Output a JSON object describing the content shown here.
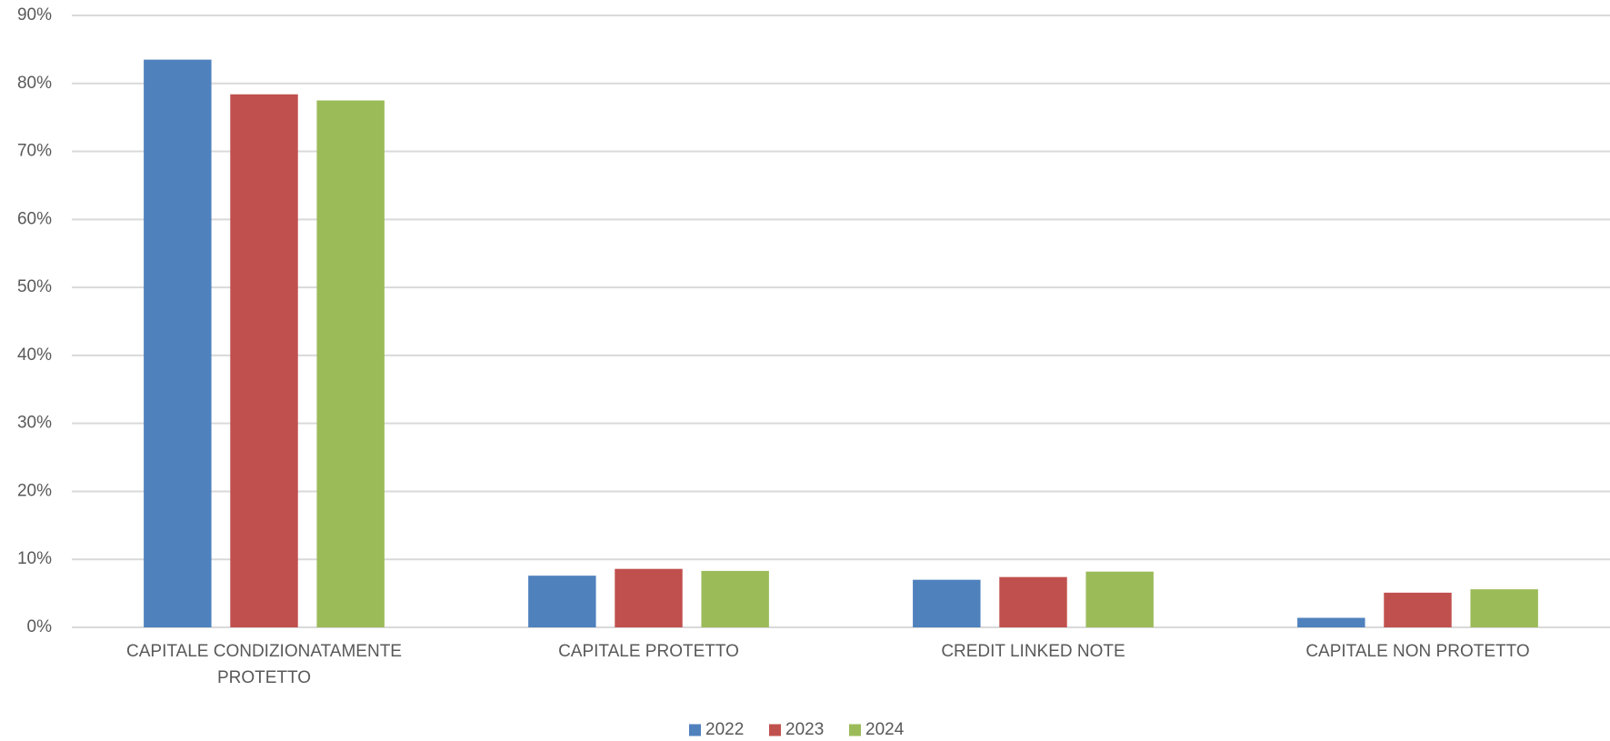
{
  "chart_data": {
    "type": "bar",
    "categories": [
      "CAPITALE CONDIZIONATAMENTE PROTETTO",
      "CAPITALE PROTETTO",
      "CREDIT LINKED NOTE",
      "CAPITALE NON PROTETTO"
    ],
    "series": [
      {
        "name": "2022",
        "color": "#4f81bd",
        "values": [
          83.5,
          7.6,
          7.0,
          1.4
        ]
      },
      {
        "name": "2023",
        "color": "#c0504d",
        "values": [
          78.4,
          8.6,
          7.4,
          5.1
        ]
      },
      {
        "name": "2024",
        "color": "#9bbb59",
        "values": [
          77.5,
          8.3,
          8.2,
          5.6
        ]
      }
    ],
    "ylim": [
      0,
      90
    ],
    "yticks": [
      {
        "value": 0,
        "label": "0%"
      },
      {
        "value": 10,
        "label": "10%"
      },
      {
        "value": 20,
        "label": "20%"
      },
      {
        "value": 30,
        "label": "30%"
      },
      {
        "value": 40,
        "label": "40%"
      },
      {
        "value": 50,
        "label": "50%"
      },
      {
        "value": 60,
        "label": "60%"
      },
      {
        "value": 70,
        "label": "70%"
      },
      {
        "value": 80,
        "label": "80%"
      },
      {
        "value": 90,
        "label": "90%"
      }
    ],
    "grid": true,
    "legend": "bottom"
  }
}
